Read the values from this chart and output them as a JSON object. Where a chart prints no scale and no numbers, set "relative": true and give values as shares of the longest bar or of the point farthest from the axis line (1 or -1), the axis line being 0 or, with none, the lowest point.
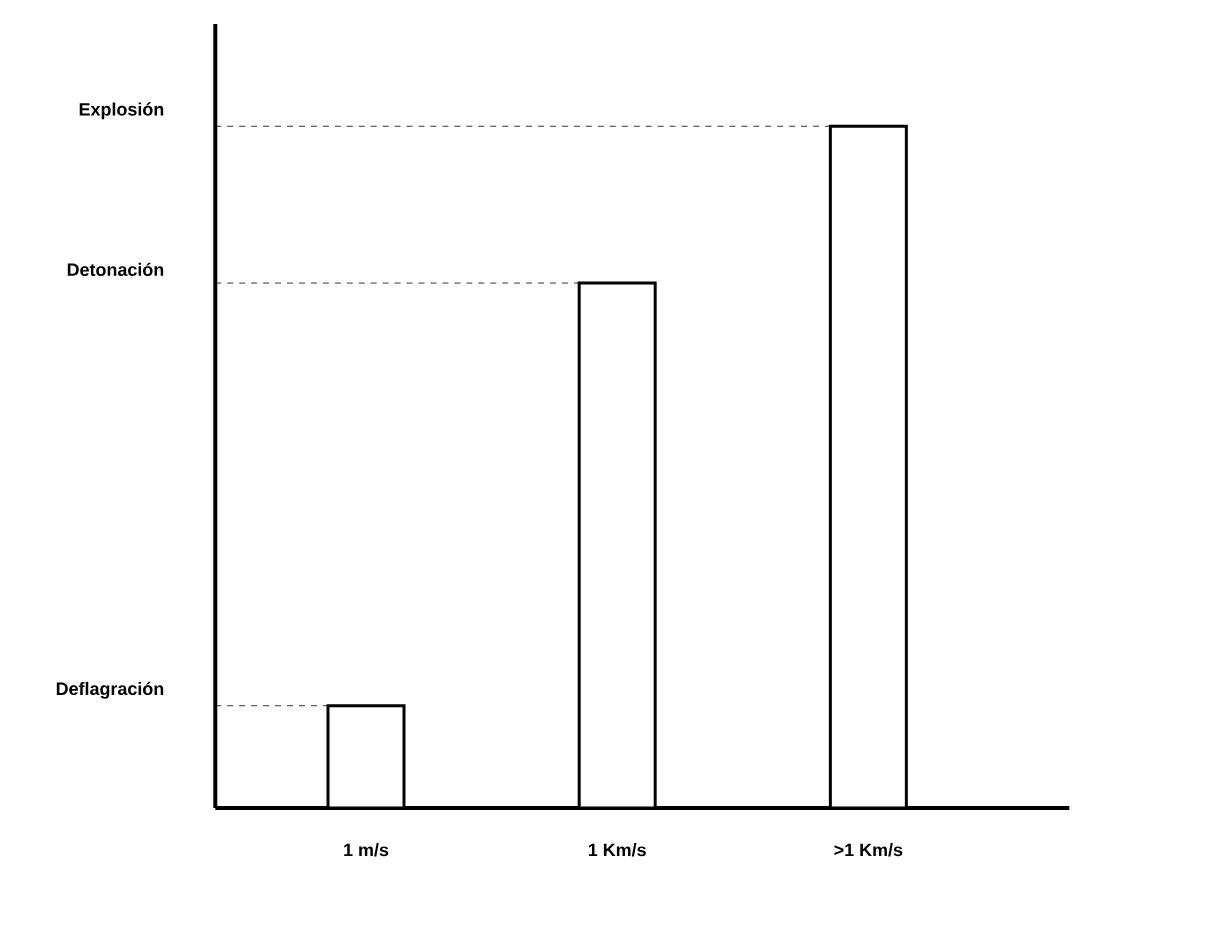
{
  "chart_data": {
    "type": "bar",
    "categories": [
      "1 m/s",
      "1 Km/s",
      ">1 Km/s"
    ],
    "values": [
      0.15,
      0.77,
      1
    ],
    "color": "#ffffff",
    "relative": true,
    "ref_lines": [
      {
        "axis": "y",
        "value": 0.15,
        "label": "Deflagración",
        "line_style": "dashed"
      },
      {
        "axis": "y",
        "value": 0.77,
        "label": "Detonación",
        "line_style": "dashed"
      },
      {
        "axis": "y",
        "value": 1,
        "label": "Explosión",
        "line_style": "dashed"
      }
    ]
  }
}
